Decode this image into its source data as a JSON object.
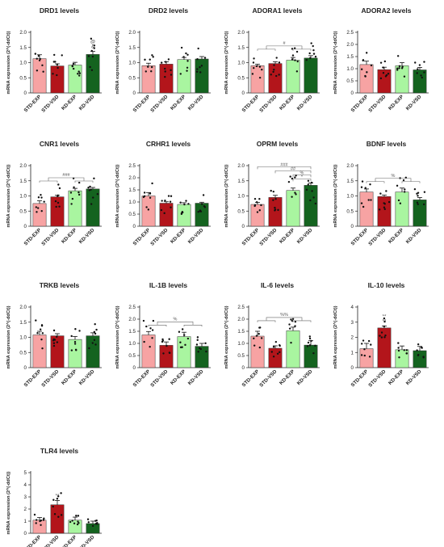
{
  "figure": {
    "ylabel": "mRNA expression (2^(-ddCt))",
    "categories": [
      "STD-EXP",
      "STD-VSD",
      "KD-EXP",
      "KD-VSD"
    ],
    "colors": {
      "STD-EXP": "#f7a3a3",
      "STD-VSD": "#b3151b",
      "KD-EXP": "#a9f5a0",
      "KD-VSD": "#14631f"
    }
  },
  "chart_data": [
    {
      "type": "bar",
      "title": "DRD1 levels",
      "ylabel": "mRNA expression (2^(-ddCt))",
      "categories": [
        "STD-EXP",
        "STD-VSD",
        "KD-EXP",
        "KD-VSD"
      ],
      "values": [
        1.13,
        0.89,
        0.92,
        1.27
      ],
      "errors": [
        0.13,
        0.07,
        0.09,
        0.1
      ],
      "ylim": [
        0,
        2.0
      ],
      "yticks": [
        0,
        0.5,
        1.0,
        1.5,
        2.0
      ],
      "bar_annotations": [
        "",
        "",
        "",
        "@\n&"
      ],
      "comparison_brackets": []
    },
    {
      "type": "bar",
      "title": "DRD2 levels",
      "ylabel": "mRNA expression (2^(-ddCt))",
      "categories": [
        "STD-EXP",
        "STD-VSD",
        "KD-EXP",
        "KD-VSD"
      ],
      "values": [
        0.9,
        0.95,
        1.1,
        1.12
      ],
      "errors": [
        0.08,
        0.08,
        0.07,
        0.08
      ],
      "ylim": [
        0,
        2.0
      ],
      "yticks": [
        0,
        0.5,
        1.0,
        1.5,
        2.0
      ],
      "bar_annotations": [
        "",
        "",
        "",
        ""
      ],
      "comparison_brackets": []
    },
    {
      "type": "bar",
      "title": "ADORA1 levels",
      "ylabel": "mRNA expression (2^(-ddCt))",
      "categories": [
        "STD-EXP",
        "STD-VSD",
        "KD-EXP",
        "KD-VSD"
      ],
      "values": [
        0.9,
        0.97,
        1.08,
        1.15
      ],
      "errors": [
        0.05,
        0.06,
        0.09,
        0.08
      ],
      "ylim": [
        0,
        2.0
      ],
      "yticks": [
        0,
        0.5,
        1.0,
        1.5,
        2.0
      ],
      "bar_annotations": [
        "",
        "",
        "",
        ""
      ],
      "comparison_brackets": [
        {
          "text": "#"
        }
      ]
    },
    {
      "type": "bar",
      "title": "ADORA2 levels",
      "ylabel": "mRNA expression (2^(-ddCt))",
      "categories": [
        "STD-EXP",
        "STD-VSD",
        "KD-EXP",
        "KD-VSD"
      ],
      "values": [
        1.17,
        0.96,
        1.12,
        0.95
      ],
      "errors": [
        0.14,
        0.1,
        0.13,
        0.1
      ],
      "ylim": [
        0,
        2.5
      ],
      "yticks": [
        0,
        0.5,
        1.0,
        1.5,
        2.0,
        2.5
      ],
      "bar_annotations": [
        "",
        "",
        "",
        ""
      ],
      "comparison_brackets": []
    },
    {
      "type": "bar",
      "title": "CNR1 levels",
      "ylabel": "mRNA expression (2^(-ddCt))",
      "categories": [
        "STD-EXP",
        "STD-VSD",
        "KD-EXP",
        "KD-VSD"
      ],
      "values": [
        0.75,
        0.97,
        1.17,
        1.23
      ],
      "errors": [
        0.09,
        0.05,
        0.08,
        0.05
      ],
      "ylim": [
        0,
        2.0
      ],
      "yticks": [
        0,
        0.5,
        1.0,
        1.5,
        2.0
      ],
      "bar_annotations": [
        "",
        "",
        "",
        ""
      ],
      "comparison_brackets": [
        {
          "text": "###"
        }
      ]
    },
    {
      "type": "bar",
      "title": "CRHR1 levels",
      "ylabel": "mRNA expression (2^(-ddCt))",
      "categories": [
        "STD-EXP",
        "STD-VSD",
        "KD-EXP",
        "KD-VSD"
      ],
      "values": [
        1.25,
        0.95,
        0.9,
        0.95
      ],
      "errors": [
        0.14,
        0.06,
        0.07,
        0.04
      ],
      "ylim": [
        0,
        2.5
      ],
      "yticks": [
        0,
        0.5,
        1.0,
        1.5,
        2.0,
        2.5
      ],
      "bar_annotations": [
        "",
        "",
        "",
        ""
      ],
      "comparison_brackets": []
    },
    {
      "type": "bar",
      "title": "OPRM levels",
      "ylabel": "mRNA expression (2^(-ddCt))",
      "categories": [
        "STD-EXP",
        "STD-VSD",
        "KD-EXP",
        "KD-VSD"
      ],
      "values": [
        0.72,
        0.95,
        1.18,
        1.35
      ],
      "errors": [
        0.07,
        0.07,
        0.08,
        0.08
      ],
      "ylim": [
        0,
        2.0
      ],
      "yticks": [
        0,
        0.5,
        1.0,
        1.5,
        2.0
      ],
      "bar_annotations": [
        "",
        "",
        "",
        ""
      ],
      "comparison_brackets": [
        {
          "text": "###"
        },
        {
          "text": "##"
        },
        {
          "text": "%"
        },
        {
          "text": "*"
        }
      ]
    },
    {
      "type": "bar",
      "title": "BDNF levels",
      "ylabel": "mRNA expression (2^(-ddCt))",
      "categories": [
        "STD-EXP",
        "STD-VSD",
        "KD-EXP",
        "KD-VSD"
      ],
      "values": [
        1.13,
        0.98,
        1.13,
        0.87
      ],
      "errors": [
        0.1,
        0.05,
        0.13,
        0.08
      ],
      "ylim": [
        0,
        2.0
      ],
      "yticks": [
        0,
        0.5,
        1.0,
        1.5,
        2.0
      ],
      "bar_annotations": [
        "",
        "",
        "",
        ""
      ],
      "comparison_brackets": [
        {
          "text": "%"
        }
      ]
    },
    {
      "type": "bar",
      "title": "TRKB levels",
      "ylabel": "mRNA expression (2^(-ddCt))",
      "categories": [
        "STD-EXP",
        "STD-VSD",
        "KD-EXP",
        "KD-VSD"
      ],
      "values": [
        1.08,
        1.05,
        0.93,
        1.05
      ],
      "errors": [
        0.12,
        0.07,
        0.1,
        0.1
      ],
      "ylim": [
        0,
        2.0
      ],
      "yticks": [
        0,
        0.5,
        1.0,
        1.5,
        2.0
      ],
      "bar_annotations": [
        "",
        "",
        "",
        ""
      ],
      "comparison_brackets": []
    },
    {
      "type": "bar",
      "title": "IL-1B levels",
      "ylabel": "mRNA expression (2^(-ddCt))",
      "categories": [
        "STD-EXP",
        "STD-VSD",
        "KD-EXP",
        "KD-VSD"
      ],
      "values": [
        1.35,
        0.92,
        1.28,
        0.88
      ],
      "errors": [
        0.14,
        0.14,
        0.18,
        0.12
      ],
      "ylim": [
        0,
        2.5
      ],
      "yticks": [
        0,
        0.5,
        1.0,
        1.5,
        2.0,
        2.5
      ],
      "bar_annotations": [
        "",
        "",
        "",
        ""
      ],
      "comparison_brackets": [
        {
          "text": "%"
        }
      ]
    },
    {
      "type": "bar",
      "title": "IL-6 levels",
      "ylabel": "mRNA expression (2^(-ddCt))",
      "categories": [
        "STD-EXP",
        "STD-VSD",
        "KD-EXP",
        "KD-VSD"
      ],
      "values": [
        1.3,
        0.8,
        1.52,
        0.93
      ],
      "errors": [
        0.2,
        0.1,
        0.15,
        0.18
      ],
      "ylim": [
        0,
        2.5
      ],
      "yticks": [
        0,
        0.5,
        1.0,
        1.5,
        2.0,
        2.5
      ],
      "bar_annotations": [
        "",
        "",
        "",
        ""
      ],
      "comparison_brackets": [
        {
          "text": "%%"
        }
      ]
    },
    {
      "type": "bar",
      "title": "IL-10 levels",
      "ylabel": "mRNA expression (2^(-ddCt))",
      "categories": [
        "STD-EXP",
        "STD-VSD",
        "KD-EXP",
        "KD-VSD"
      ],
      "values": [
        1.25,
        2.62,
        1.18,
        1.12
      ],
      "errors": [
        0.35,
        0.12,
        0.25,
        0.28
      ],
      "ylim": [
        0,
        4
      ],
      "yticks": [
        0,
        1,
        2,
        3,
        4
      ],
      "bar_annotations": [
        "",
        "**\n**",
        "",
        ""
      ],
      "comparison_brackets": []
    },
    {
      "type": "bar",
      "title": "TLR4 levels",
      "ylabel": "mRNA expression (2^(-ddCt))",
      "categories": [
        "STD-EXP",
        "STD-VSD",
        "KD-EXP",
        "KD-VSD"
      ],
      "values": [
        1.08,
        2.35,
        1.08,
        0.8
      ],
      "errors": [
        0.22,
        0.35,
        0.25,
        0.2
      ],
      "ylim": [
        0,
        5
      ],
      "yticks": [
        0,
        1,
        2,
        3,
        4,
        5
      ],
      "bar_annotations": [
        "",
        "**",
        "",
        ""
      ],
      "comparison_brackets": []
    }
  ]
}
